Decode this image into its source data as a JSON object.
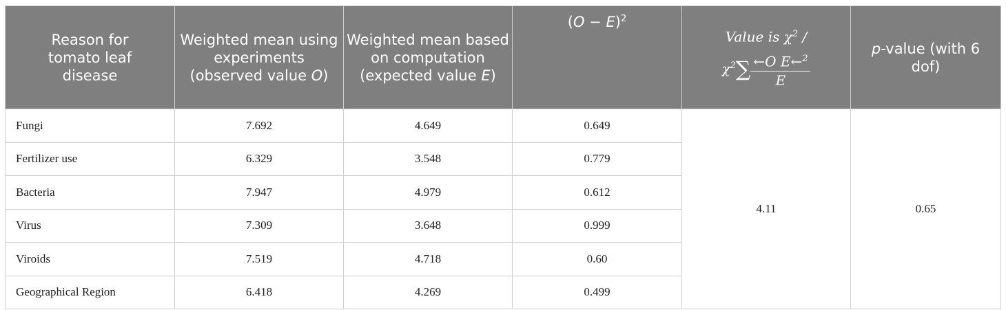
{
  "table": {
    "header": [
      [
        "Reason for tomato leaf disease"
      ],
      [
        "Weighted mean using experiments (observed value ",
        "O",
        ")"
      ],
      [
        "Weighted mean based on computation (expected value ",
        "E",
        ")"
      ],
      [
        "(",
        "O",
        " − ",
        "E",
        ")",
        "2"
      ],
      [
        "Value is ",
        "χ",
        "2",
        " /",
        "χ",
        "2",
        "∑",
        "←O  E←",
        "2",
        "E"
      ],
      [
        "p",
        "-value (with 6 dof)"
      ]
    ],
    "rows": [
      [
        "Fungi",
        "7.692",
        "4.649",
        "0.649"
      ],
      [
        "Fertilizer use",
        "6.329",
        "3.548",
        "0.779"
      ],
      [
        "Bacteria",
        "7.947",
        "4.979",
        "0.612"
      ],
      [
        "Virus",
        "7.309",
        "3.648",
        "0.999"
      ],
      [
        "Viroids",
        "7.519",
        "4.718",
        "0.60"
      ],
      [
        "Geographical Region",
        "6.418",
        "4.269",
        "0.499"
      ]
    ],
    "chi_square": "4.11",
    "p_value": "0.65"
  }
}
